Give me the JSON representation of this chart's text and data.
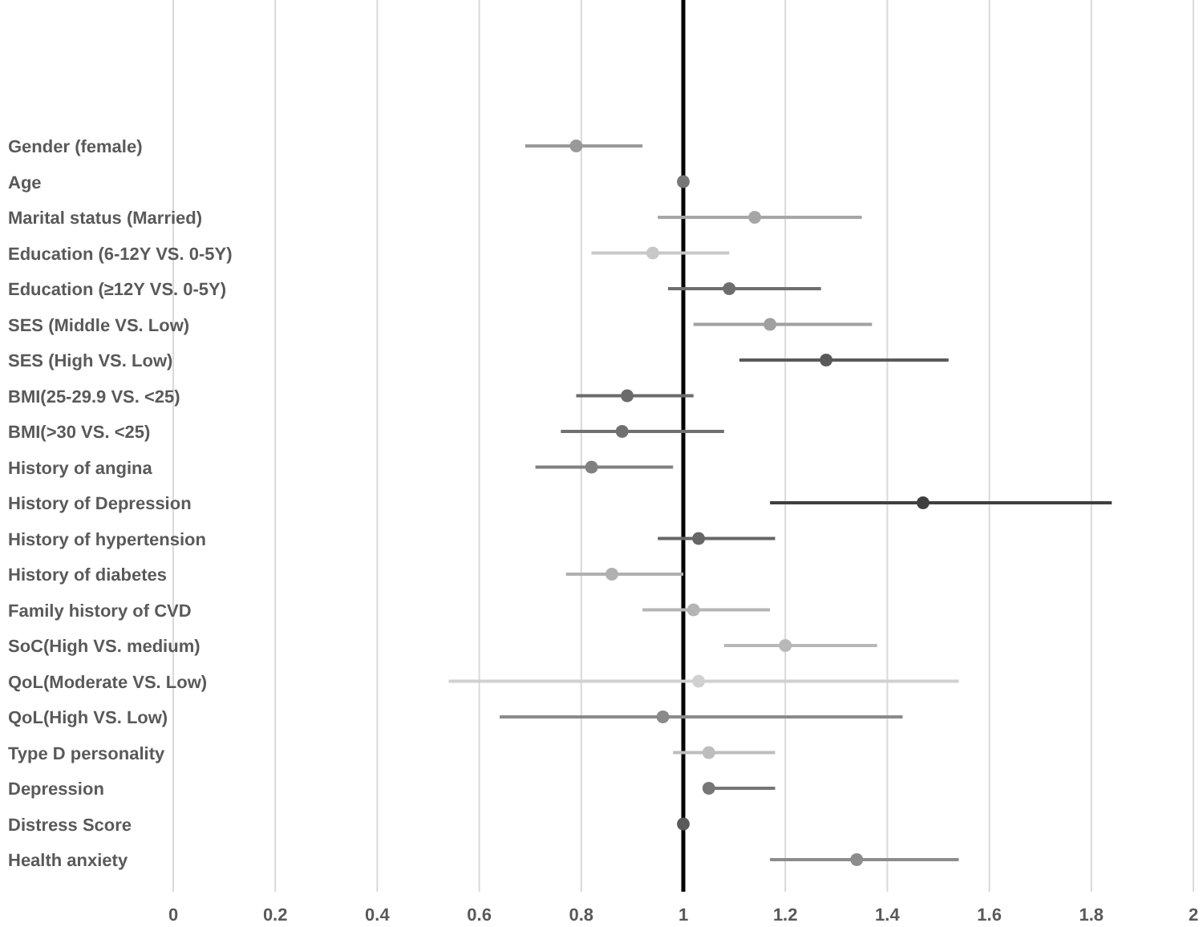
{
  "chart_data": {
    "type": "scatter",
    "orientation": "horizontal",
    "grid": "x",
    "marker": "circle",
    "categories": [
      "Gender (female)",
      "Age",
      "Marital status (Married)",
      "Education (6-12Y VS. 0-5Y)",
      "Education (≥12Y VS. 0-5Y)",
      "SES (Middle VS. Low)",
      "SES (High VS. Low)",
      "BMI(25-29.9 VS. <25)",
      "BMI(>30 VS. <25)",
      "History of angina",
      "History of Depression",
      "History of hypertension",
      "History of diabetes",
      "Family history of CVD",
      "SoC(High VS. medium)",
      "QoL(Moderate VS. Low)",
      "QoL(High VS. Low)",
      "Type D personality",
      "Depression",
      "Distress Score",
      "Health anxiety"
    ],
    "values": [
      0.79,
      1.0,
      1.14,
      0.94,
      1.09,
      1.17,
      1.28,
      0.89,
      0.88,
      0.82,
      1.47,
      1.03,
      0.86,
      1.02,
      1.2,
      1.03,
      0.96,
      1.05,
      1.05,
      1.0,
      1.34
    ],
    "errors": [
      [
        0.69,
        0.92
      ],
      null,
      [
        0.95,
        1.35
      ],
      [
        0.82,
        1.09
      ],
      [
        0.97,
        1.27
      ],
      [
        1.02,
        1.37
      ],
      [
        1.11,
        1.52
      ],
      [
        0.79,
        1.02
      ],
      [
        0.76,
        1.08
      ],
      [
        0.71,
        0.98
      ],
      [
        1.17,
        1.84
      ],
      [
        0.95,
        1.18
      ],
      [
        0.77,
        1.0
      ],
      [
        0.92,
        1.17
      ],
      [
        1.08,
        1.38
      ],
      [
        0.54,
        1.54
      ],
      [
        0.64,
        1.43
      ],
      [
        0.98,
        1.18
      ],
      [
        1.04,
        1.18
      ],
      null,
      [
        1.17,
        1.54
      ]
    ],
    "colors": [
      "#999999",
      "#777777",
      "#a6a6a6",
      "#c8c8c8",
      "#6e6e6e",
      "#a0a0a0",
      "#595959",
      "#6b6b6b",
      "#707070",
      "#808080",
      "#3f3f3f",
      "#666666",
      "#b0b0b0",
      "#b5b5b5",
      "#b8b8b8",
      "#d0d0d0",
      "#8a8a8a",
      "#bdbdbd",
      "#767676",
      "#5a5a5a",
      "#8c8c8c"
    ],
    "xlim": [
      0,
      2
    ],
    "xticks": [
      0,
      0.2,
      0.4,
      0.6,
      0.8,
      1,
      1.2,
      1.4,
      1.6,
      1.8,
      2
    ],
    "ref_lines": [
      {
        "axis": "x",
        "value": 1,
        "color": "#000000"
      }
    ]
  }
}
